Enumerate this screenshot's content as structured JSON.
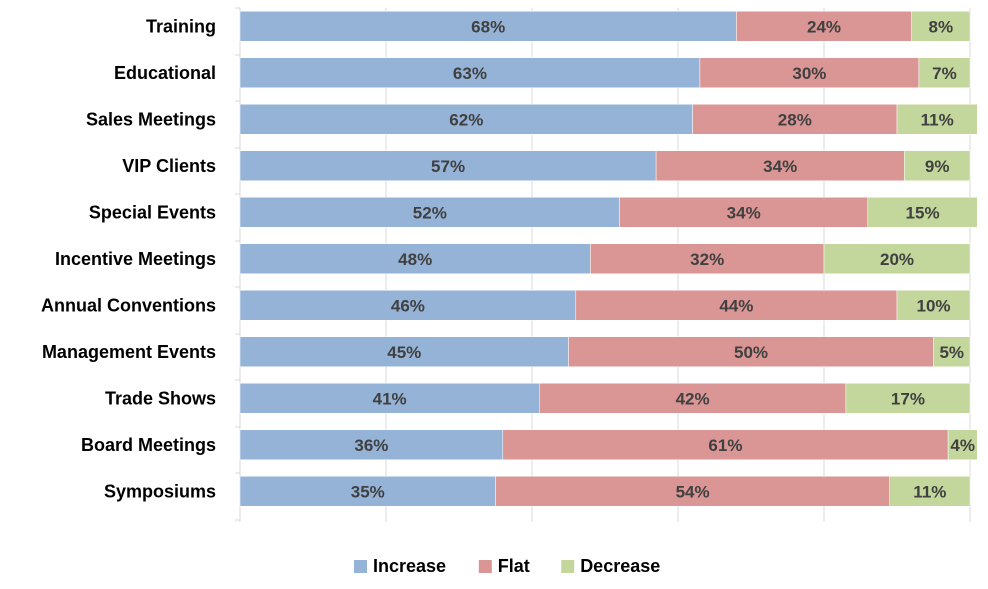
{
  "chart_data": {
    "type": "bar",
    "orientation": "horizontal",
    "stacked": true,
    "title": "",
    "xlabel": "",
    "ylabel": "",
    "categories": [
      "Training",
      "Educational",
      "Sales Meetings",
      "VIP Clients",
      "Special Events",
      "Incentive Meetings",
      "Annual Conventions",
      "Management Events",
      "Trade Shows",
      "Board Meetings",
      "Symposiums"
    ],
    "series": [
      {
        "name": "Increase",
        "color": "#95b3d7",
        "values": [
          68,
          63,
          62,
          57,
          52,
          48,
          46,
          45,
          41,
          36,
          35
        ],
        "labels": [
          "68%",
          "63%",
          "62%",
          "57%",
          "52%",
          "48%",
          "46%",
          "45%",
          "41%",
          "36%",
          "35%"
        ]
      },
      {
        "name": "Flat",
        "color": "#d99694",
        "values": [
          24,
          30,
          28,
          34,
          34,
          32,
          44,
          50,
          42,
          61,
          54
        ],
        "labels": [
          "24%",
          "30%",
          "28%",
          "34%",
          "34%",
          "32%",
          "44%",
          "50%",
          "42%",
          "61%",
          "54%"
        ]
      },
      {
        "name": "Decrease",
        "color": "#c3d69b",
        "values": [
          8,
          7,
          11,
          9,
          15,
          20,
          10,
          5,
          17,
          4,
          11
        ],
        "labels": [
          "8%",
          "7%",
          "11%",
          "9%",
          "15%",
          "20%",
          "10%",
          "5%",
          "17%",
          "4%",
          "11%"
        ]
      }
    ],
    "xlim": [
      0,
      100
    ],
    "grid": true,
    "legend_position": "bottom",
    "label_color": "#404040",
    "grid_color": "#d9d9d9"
  }
}
